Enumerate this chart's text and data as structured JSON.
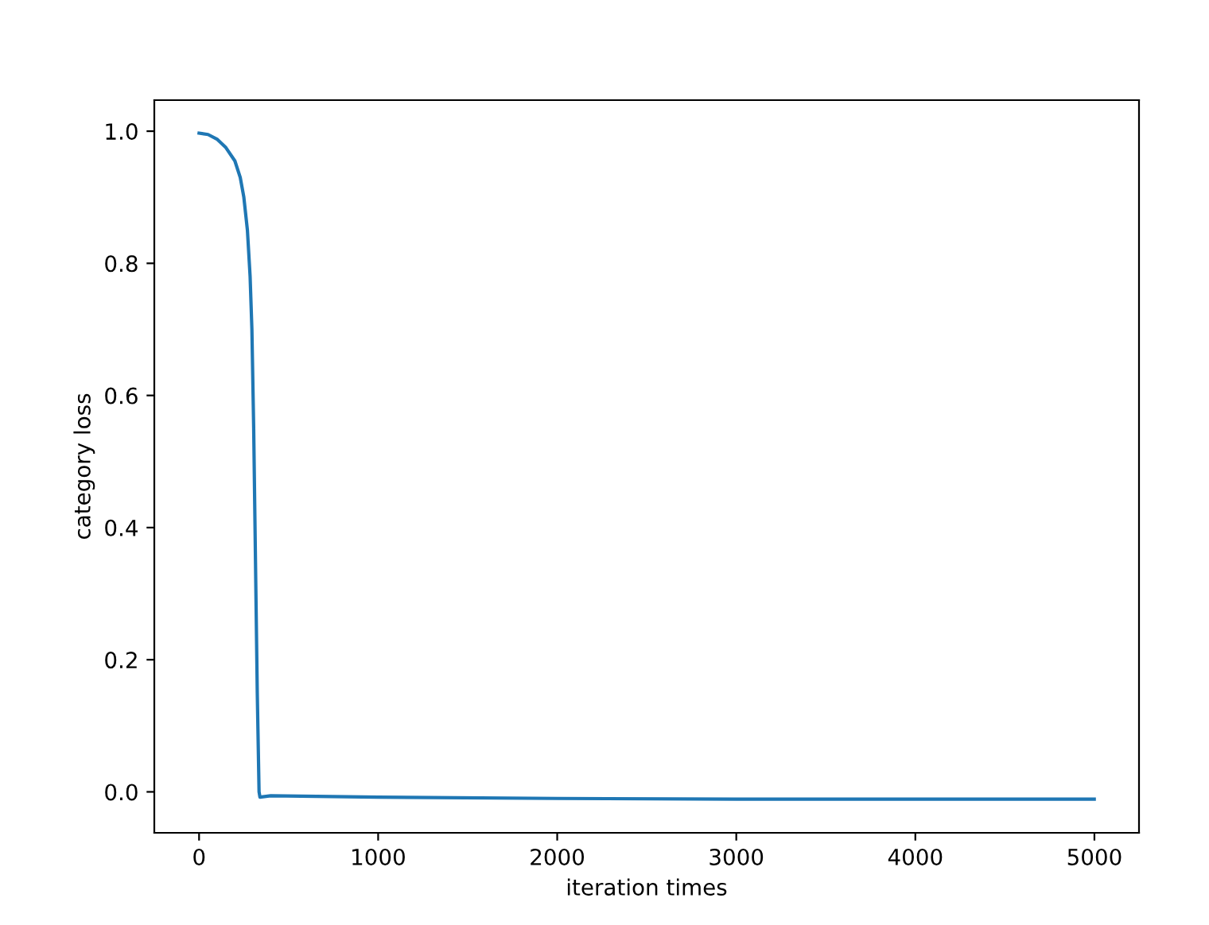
{
  "chart_data": {
    "type": "line",
    "xlabel": "iteration times",
    "ylabel": "category loss",
    "x": [
      0,
      50,
      100,
      150,
      200,
      230,
      250,
      270,
      285,
      295,
      305,
      315,
      325,
      335,
      340,
      400,
      1000,
      2000,
      3000,
      4000,
      4999
    ],
    "series": [
      {
        "color": "#1f77b4",
        "values": [
          0.997,
          0.995,
          0.988,
          0.975,
          0.955,
          0.93,
          0.9,
          0.85,
          0.78,
          0.7,
          0.55,
          0.35,
          0.15,
          0.0,
          -0.008,
          -0.006,
          -0.008,
          -0.01,
          -0.011,
          -0.011,
          -0.011
        ]
      }
    ],
    "xlim": [
      -250,
      5249
    ],
    "ylim": [
      -0.062,
      1.047
    ],
    "xticks": [
      0,
      1000,
      2000,
      3000,
      4000,
      5000
    ],
    "yticks": [
      {
        "value": 0,
        "label": "0.0"
      },
      {
        "value": 0.2,
        "label": "0.2"
      },
      {
        "value": 0.4,
        "label": "0.4"
      },
      {
        "value": 0.6,
        "label": "0.6"
      },
      {
        "value": 0.8,
        "label": "0.8"
      },
      {
        "value": 1,
        "label": "1.0"
      }
    ],
    "grid": false,
    "legend": false,
    "marker": "none",
    "line_style": "solid"
  }
}
